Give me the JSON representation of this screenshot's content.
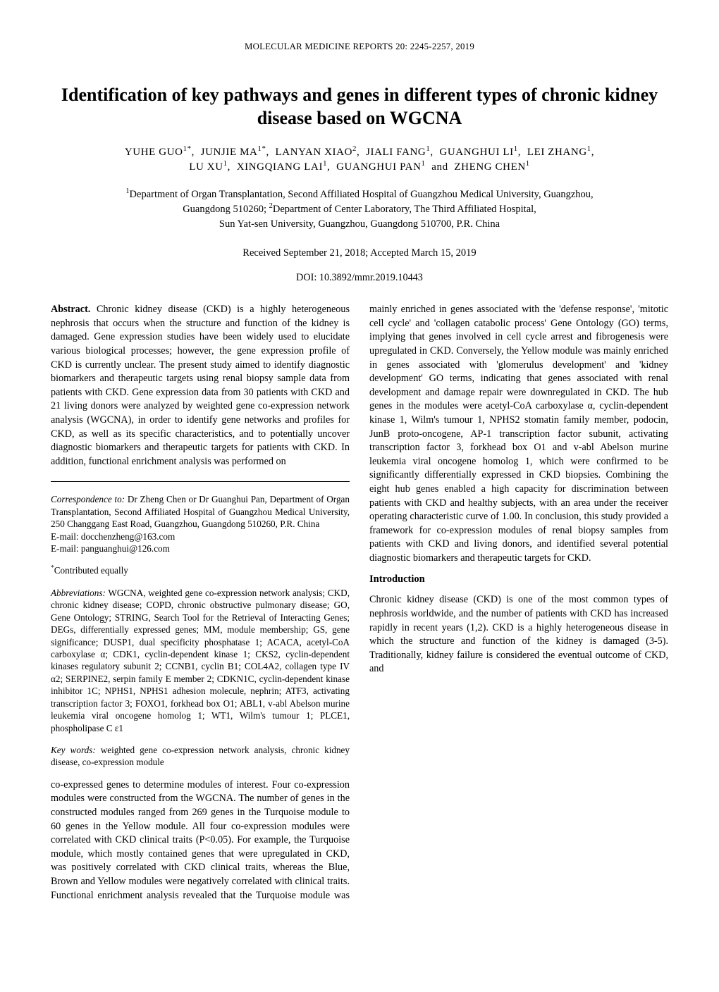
{
  "runningHead": "MOLECULAR MEDICINE REPORTS  20:  2245-2257,  2019",
  "title": "Identification of key pathways and genes in different types of chronic kidney disease based on WGCNA",
  "authorsHtml": "YUHE GUO<sup>1*</sup>,&nbsp; JUNJIE MA<sup>1*</sup>,&nbsp; LANYAN XIAO<sup>2</sup>,&nbsp; JIALI FANG<sup>1</sup>,&nbsp; GUANGHUI LI<sup>1</sup>,&nbsp; LEI ZHANG<sup>1</sup>,<br>LU XU<sup>1</sup>,&nbsp; XINGQIANG LAI<sup>1</sup>,&nbsp; GUANGHUI PAN<sup>1</sup>&nbsp; and&nbsp; ZHENG CHEN<sup>1</sup>",
  "affiliationsHtml": "<sup>1</sup>Department of Organ Transplantation, Second Affiliated Hospital of Guangzhou Medical University, Guangzhou,<br>Guangdong 510260; <sup>2</sup>Department of Center Laboratory, The Third Affiliated Hospital,<br>Sun Yat-sen University, Guangzhou, Guangdong 510700, P.R. China",
  "dates": "Received September 21, 2018;  Accepted March 15, 2019",
  "doi": "DOI:  10.3892/mmr.2019.10443",
  "abstractLabel": "Abstract.",
  "abstractLeft": " Chronic kidney disease (CKD) is a highly heterogeneous nephrosis that occurs when the structure and function of the kidney is damaged. Gene expression studies have been widely used to elucidate various biological processes; however, the gene expression profile of CKD is currently unclear. The present study aimed to identify diagnostic biomarkers and therapeutic targets using renal biopsy sample data from patients with CKD. Gene expression data from 30 patients with CKD and 21 living donors were analyzed by weighted gene co-expression network analysis (WGCNA), in order to identify gene networks and profiles for CKD, as well as its specific characteristics, and to potentially uncover diagnostic biomarkers and therapeutic targets for patients with CKD. In addition, functional enrichment analysis was performed on",
  "correspondence": {
    "label": "Correspondence to:",
    "body": " Dr Zheng Chen or Dr Guanghui Pan, Department of Organ Transplantation, Second Affiliated Hospital of Guangzhou Medical University, 250 Changgang East Road, Guangzhou, Guangdong 510260, P.R. China",
    "email1": "E-mail: docchenzheng@163.com",
    "email2": "E-mail: panguanghui@126.com"
  },
  "contributedHtml": "<sup>*</sup>Contributed equally",
  "abbrev": {
    "label": "Abbreviations:",
    "body": " WGCNA, weighted gene co-expression network analysis; CKD, chronic kidney disease; COPD, chronic obstructive pulmonary disease; GO, Gene Ontology; STRING, Search Tool for the Retrieval of Interacting Genes; DEGs, differentially expressed genes; MM, module membership; GS, gene significance; DUSP1, dual specificity phosphatase 1; ACACA, acetyl-CoA carboxylase α; CDK1, cyclin-dependent kinase 1; CKS2, cyclin-dependent kinases regulatory subunit 2; CCNB1, cyclin B1; COL4A2, collagen type IV α2; SERPINE2, serpin family E member 2; CDKN1C, cyclin-dependent kinase inhibitor 1C; NPHS1, NPHS1 adhesion molecule, nephrin; ATF3, activating transcription factor 3; FOXO1, forkhead box O1; ABL1, v-abl Abelson murine leukemia viral oncogene homolog 1; WT1, Wilm's tumour 1; PLCE1, phospholipase C ε1"
  },
  "keywords": {
    "label": "Key words:",
    "body": " weighted gene co-expression network analysis, chronic kidney disease, co-expression module"
  },
  "abstractRight": "co-expressed genes to determine modules of interest. Four co-expression modules were constructed from the WGCNA. The number of genes in the constructed modules ranged from 269 genes in the Turquoise module to 60 genes in the Yellow module. All four co-expression modules were correlated with CKD clinical traits (P<0.05). For example, the Turquoise module, which mostly contained genes that were upregulated in CKD, was positively correlated with CKD clinical traits, whereas the Blue, Brown and Yellow modules were negatively correlated with clinical traits. Functional enrichment analysis revealed that the Turquoise module was mainly enriched in genes associated with the 'defense response', 'mitotic cell cycle' and 'collagen catabolic process' Gene Ontology (GO) terms, implying that genes involved in cell cycle arrest and fibrogenesis were upregulated in CKD. Conversely, the Yellow module was mainly enriched in genes associated with 'glomerulus development' and 'kidney development' GO terms, indicating that genes associated with renal development and damage repair were downregulated in CKD. The hub genes in the modules were acetyl-CoA carboxylase α, cyclin-dependent kinase 1, Wilm's tumour 1, NPHS2 stomatin family member, podocin, JunB proto-oncogene, AP-1 transcription factor subunit, activating transcription factor 3, forkhead box O1 and v-abl Abelson murine leukemia viral oncogene homolog 1, which were confirmed to be significantly differentially expressed in CKD biopsies. Combining the eight hub genes enabled a high capacity for discrimination between patients with CKD and healthy subjects, with an area under the receiver operating characteristic curve of 1.00. In conclusion, this study provided a framework for co-expression modules of renal biopsy samples from patients with CKD and living donors, and identified several potential diagnostic biomarkers and therapeutic targets for CKD.",
  "introHead": "Introduction",
  "introBody": "Chronic kidney disease (CKD) is one of the most common types of nephrosis worldwide, and the number of patients with CKD has increased rapidly in recent years (1,2). CKD is a highly heterogeneous disease in which the structure and function of the kidney is damaged (3-5). Traditionally, kidney failure is considered the eventual outcome of CKD, and",
  "style": {
    "pageWidth": 1020,
    "pageHeight": 1408,
    "bodyFontSize": 14.2,
    "titleFontSize": 26,
    "authorFontSize": 15,
    "footBlockFontSize": 13.2,
    "textColor": "#000000",
    "backgroundColor": "#ffffff",
    "columns": 2,
    "columnGap": 28
  }
}
